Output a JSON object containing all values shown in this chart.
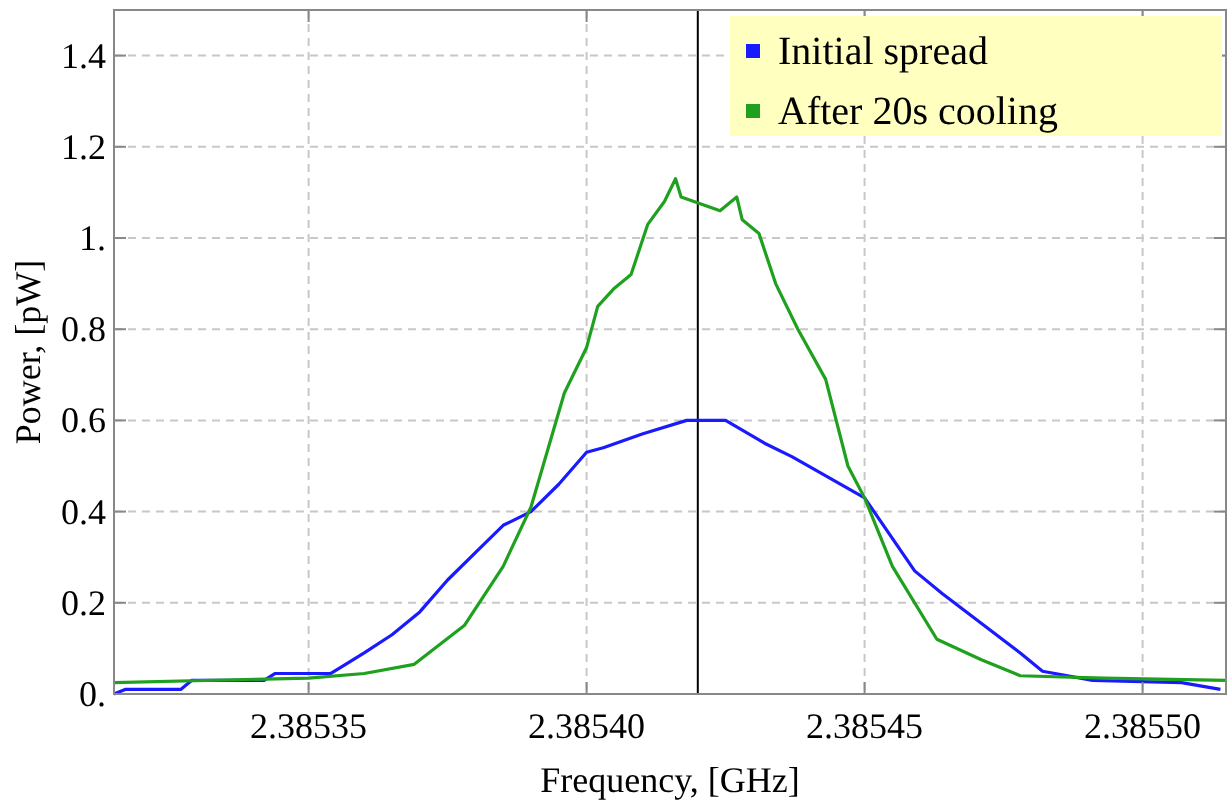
{
  "chart_data": {
    "type": "line",
    "xlabel": "Frequency, [GHz]",
    "ylabel": "Power, [pW]",
    "xlim": [
      2.385315,
      2.385515
    ],
    "xticks": [
      2.38535,
      {
        "value": 2.3854,
        "label": "2.38540"
      },
      2.38545,
      {
        "value": 2.3855,
        "label": "2.38550"
      }
    ],
    "ylim": [
      0,
      1.5
    ],
    "yticks": [
      {
        "value": 0,
        "label": "0."
      },
      0.2,
      0.4,
      0.6,
      0.8,
      {
        "value": 1,
        "label": "1."
      },
      1.2,
      1.4
    ],
    "grid": true,
    "legend": "top right",
    "marker": "none",
    "line_style": "solid",
    "ref_lines": [
      {
        "axis": "x",
        "value": 2.38542,
        "color": "#000000"
      }
    ],
    "series": [
      {
        "name": "Initial spread",
        "color": "#1a1aff",
        "x": [
          2.385315,
          2.385317,
          2.385327,
          2.385329,
          2.385342,
          2.385344,
          2.385354,
          2.385356,
          2.38536,
          2.385365,
          2.38537,
          2.385375,
          2.38538,
          2.385385,
          2.38539,
          2.385395,
          2.3854,
          2.385403,
          2.38541,
          2.385418,
          2.385425,
          2.385432,
          2.385437,
          2.38545,
          2.385459,
          2.385464,
          2.385478,
          2.385482,
          2.385491,
          2.385507,
          2.385514
        ],
        "values": [
          0,
          0.01,
          0.01,
          0.03,
          0.03,
          0.045,
          0.045,
          0.06,
          0.09,
          0.13,
          0.18,
          0.25,
          0.31,
          0.37,
          0.4,
          0.46,
          0.53,
          0.54,
          0.57,
          0.6,
          0.6,
          0.55,
          0.52,
          0.43,
          0.27,
          0.22,
          0.09,
          0.05,
          0.03,
          0.025,
          0.01
        ]
      },
      {
        "name": "After 20s cooling",
        "color": "#1fa01f",
        "x": [
          2.385315,
          2.38535,
          2.38536,
          2.385369,
          2.385378,
          2.385385,
          2.38539,
          2.385396,
          2.3854,
          2.385402,
          2.385405,
          2.385408,
          2.385411,
          2.385414,
          2.385416,
          2.385417,
          2.385424,
          2.385427,
          2.385428,
          2.385431,
          2.385434,
          2.385438,
          2.385443,
          2.385447,
          2.38545,
          2.385455,
          2.385463,
          2.385471,
          2.385478,
          2.385493,
          2.385515
        ],
        "values": [
          0.025,
          0.035,
          0.045,
          0.065,
          0.15,
          0.28,
          0.41,
          0.66,
          0.76,
          0.85,
          0.89,
          0.92,
          1.03,
          1.08,
          1.13,
          1.09,
          1.06,
          1.09,
          1.04,
          1.01,
          0.9,
          0.8,
          0.69,
          0.5,
          0.43,
          0.28,
          0.12,
          0.075,
          0.04,
          0.035,
          0.03
        ]
      }
    ]
  }
}
